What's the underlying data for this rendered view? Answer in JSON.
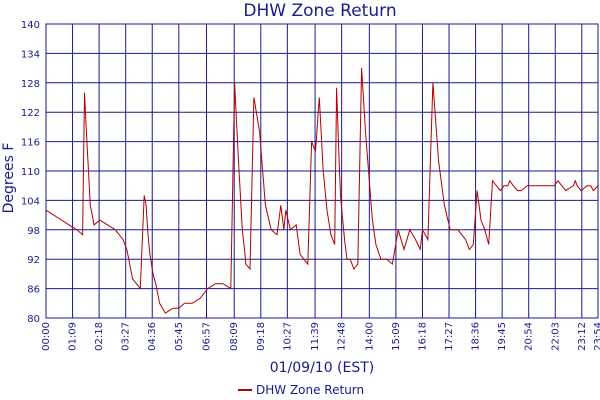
{
  "chart_data": {
    "type": "line",
    "title": "DHW Zone Return",
    "xlabel": "01/09/10 (EST)",
    "ylabel": "Degrees F",
    "ylim": [
      80,
      140
    ],
    "yticks": [
      80,
      86,
      92,
      98,
      104,
      110,
      116,
      122,
      128,
      134,
      140
    ],
    "xlim": [
      "00:00",
      "23:54"
    ],
    "xticks": [
      "00:00",
      "01:09",
      "02:18",
      "03:27",
      "04:36",
      "05:45",
      "06:57",
      "08:09",
      "09:18",
      "10:27",
      "11:39",
      "12:48",
      "14:00",
      "15:09",
      "16:18",
      "17:27",
      "18:36",
      "19:45",
      "20:54",
      "22:03",
      "23:12",
      "23:54"
    ],
    "grid": true,
    "legend_position": "bottom-center",
    "colors": {
      "line": "#b00000",
      "grid": "#1a1a8c",
      "text": "#1a1a8c"
    },
    "series": [
      {
        "name": "DHW Zone Return",
        "x": [
          "00:00",
          "00:20",
          "00:40",
          "01:00",
          "01:20",
          "01:35",
          "01:40",
          "01:45",
          "01:55",
          "02:05",
          "02:20",
          "02:40",
          "03:00",
          "03:20",
          "03:30",
          "03:45",
          "04:05",
          "04:15",
          "04:20",
          "04:25",
          "04:30",
          "04:38",
          "04:45",
          "04:55",
          "05:10",
          "05:30",
          "05:45",
          "06:00",
          "06:20",
          "06:40",
          "07:00",
          "07:20",
          "07:40",
          "08:00",
          "08:10",
          "08:20",
          "08:30",
          "08:37",
          "08:39",
          "08:50",
          "09:00",
          "09:15",
          "09:30",
          "09:45",
          "10:00",
          "10:10",
          "10:18",
          "10:23",
          "10:35",
          "10:50",
          "11:00",
          "11:10",
          "11:20",
          "11:30",
          "11:40",
          "11:50",
          "12:00",
          "12:10",
          "12:20",
          "12:30",
          "12:35",
          "12:40",
          "12:45",
          "12:53",
          "12:57",
          "13:02",
          "13:10",
          "13:20",
          "13:30",
          "13:40",
          "13:50",
          "14:00",
          "14:08",
          "14:17",
          "14:30",
          "14:45",
          "15:00",
          "15:15",
          "15:30",
          "15:45",
          "16:00",
          "16:12",
          "16:18",
          "16:32",
          "16:45",
          "17:00",
          "17:15",
          "17:30",
          "17:50",
          "18:10",
          "18:20",
          "18:30",
          "18:40",
          "18:50",
          "19:00",
          "19:10",
          "19:20",
          "19:30",
          "19:40",
          "19:50",
          "20:00",
          "20:05",
          "20:14",
          "20:25",
          "20:35",
          "20:50",
          "21:10",
          "21:30",
          "21:45",
          "22:00",
          "22:10",
          "22:20",
          "22:30",
          "22:50",
          "22:55",
          "23:00",
          "23:10",
          "23:25",
          "23:35",
          "23:42",
          "23:54"
        ],
        "y": [
          102,
          101,
          100,
          99,
          98,
          97,
          126,
          118,
          103,
          99,
          100,
          99,
          98,
          96,
          94,
          88,
          86,
          105,
          103,
          97,
          93,
          89,
          87,
          83,
          81,
          82,
          82,
          83,
          83,
          84,
          86,
          87,
          87,
          86,
          128,
          112,
          98,
          93,
          91,
          90,
          125,
          118,
          103,
          98,
          97,
          103,
          98,
          102,
          98,
          99,
          93,
          92,
          91,
          116,
          114,
          125,
          110,
          102,
          97,
          95,
          127,
          115,
          105,
          98,
          95,
          92,
          92,
          90,
          91,
          131,
          118,
          108,
          100,
          95,
          92,
          92,
          91,
          98,
          94,
          98,
          96,
          94,
          98,
          96,
          128,
          112,
          103,
          98,
          98,
          96,
          94,
          95,
          106,
          100,
          98,
          95,
          108,
          107,
          106,
          107,
          107,
          108,
          107,
          106,
          106,
          107,
          107,
          107,
          107,
          107,
          108,
          107,
          106,
          107,
          108,
          107,
          106,
          107,
          107,
          106,
          107
        ]
      }
    ]
  }
}
